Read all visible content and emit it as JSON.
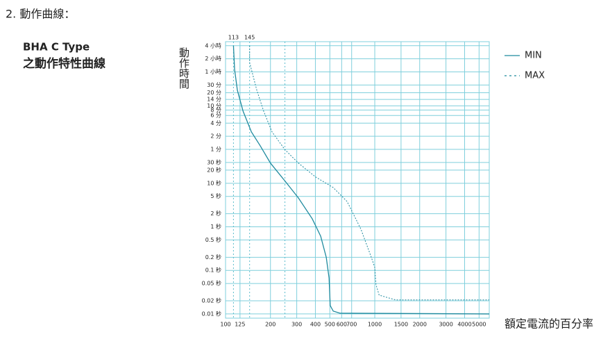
{
  "heading": "2. 動作曲線：",
  "subheading": [
    "BHA C Type",
    "之動作特性曲線"
  ],
  "chart_data": {
    "type": "line",
    "y_label": "動作時間",
    "x_label": "額定電流的百分率",
    "log_x": true,
    "log_y": true,
    "grid": true,
    "legend": "right",
    "xlim": [
      100,
      5850
    ],
    "ylim": [
      0.008,
      17800
    ],
    "xticks": [
      100,
      125,
      200,
      300,
      400,
      500,
      600,
      700,
      1000,
      1500,
      2000,
      3000,
      4000,
      5000
    ],
    "yticks": [
      {
        "value": 14400,
        "label": "4 小時"
      },
      {
        "value": 7200,
        "label": "2 小時"
      },
      {
        "value": 3600,
        "label": "1 小時"
      },
      {
        "value": 1800,
        "label": "30 分"
      },
      {
        "value": 1200,
        "label": "20 分"
      },
      {
        "value": 840,
        "label": "14 分"
      },
      {
        "value": 600,
        "label": "10 分"
      },
      {
        "value": 480,
        "label": "8 分"
      },
      {
        "value": 360,
        "label": "6 分"
      },
      {
        "value": 240,
        "label": "4 分"
      },
      {
        "value": 120,
        "label": "2 分"
      },
      {
        "value": 60,
        "label": "1 分"
      },
      {
        "value": 30,
        "label": "30 秒"
      },
      {
        "value": 20,
        "label": "20 秒"
      },
      {
        "value": 10,
        "label": "10 秒"
      },
      {
        "value": 5,
        "label": "5 秒"
      },
      {
        "value": 2,
        "label": "2 秒"
      },
      {
        "value": 1,
        "label": "1 秒"
      },
      {
        "value": 0.5,
        "label": "0.5 秒"
      },
      {
        "value": 0.2,
        "label": "0.2 秒"
      },
      {
        "value": 0.1,
        "label": "0.1 秒"
      },
      {
        "value": 0.05,
        "label": "0.05 秒"
      },
      {
        "value": 0.02,
        "label": "0.02 秒"
      },
      {
        "value": 0.01,
        "label": "0.01 秒"
      }
    ],
    "reference_lines": [
      113,
      145,
      250
    ],
    "series": [
      {
        "name": "MIN",
        "color": "#1f8a9e",
        "dashed": false,
        "x": [
          113,
          115,
          120,
          131,
          149,
          171,
          200,
          249,
          308,
          381,
          434,
          473,
          494,
          503,
          527,
          585,
          5850
        ],
        "values": [
          14400,
          4110,
          1370,
          454,
          151,
          72,
          29,
          11.5,
          4.6,
          1.53,
          0.61,
          0.2,
          0.067,
          0.0155,
          0.0116,
          0.0104,
          0.01
        ]
      },
      {
        "name": "MAX",
        "color": "#1f8a9e",
        "dashed": true,
        "x": [
          145,
          145,
          162,
          180,
          205,
          249,
          308,
          402,
          526,
          653,
          808,
          948,
          1000,
          1019,
          1070,
          1378,
          5850
        ],
        "values": [
          14400,
          5900,
          1370,
          454,
          151,
          60,
          29,
          13.9,
          8,
          3.8,
          0.88,
          0.2,
          0.117,
          0.047,
          0.027,
          0.021,
          0.021
        ]
      }
    ]
  }
}
